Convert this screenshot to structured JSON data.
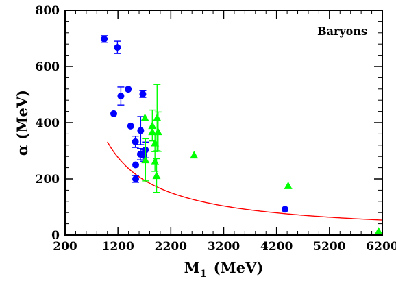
{
  "chart_data": {
    "type": "scatter",
    "ylabel": "α (MeV)",
    "xlabel": "M",
    "xlabel_sub": "1",
    "xlabel_unit": "(MeV)",
    "annotation": "Baryons",
    "xlim": [
      200,
      6200
    ],
    "ylim": [
      0,
      800
    ],
    "x_ticks": [
      200,
      1200,
      2200,
      3200,
      4200,
      5200,
      6200
    ],
    "y_ticks": [
      0,
      200,
      400,
      600,
      800
    ],
    "grid": false,
    "series": [
      {
        "marker": "circle",
        "color": "#0000ff",
        "points": [
          {
            "x": 940,
            "y": 698,
            "err": 12
          },
          {
            "x": 1190,
            "y": 668,
            "err": 22
          },
          {
            "x": 1255,
            "y": 495,
            "err": 32
          },
          {
            "x": 1395,
            "y": 519,
            "err": 0
          },
          {
            "x": 1440,
            "y": 388,
            "err": 0
          },
          {
            "x": 1120,
            "y": 432,
            "err": 0
          },
          {
            "x": 1530,
            "y": 332,
            "err": 20
          },
          {
            "x": 1535,
            "y": 250,
            "err": 0
          },
          {
            "x": 1535,
            "y": 200,
            "err": 12
          },
          {
            "x": 1630,
            "y": 372,
            "err": 50
          },
          {
            "x": 1625,
            "y": 288,
            "err": 20
          },
          {
            "x": 1690,
            "y": 283,
            "err": 20
          },
          {
            "x": 1720,
            "y": 303,
            "err": 28
          },
          {
            "x": 1670,
            "y": 502,
            "err": 12
          },
          {
            "x": 4360,
            "y": 92,
            "err": 0
          }
        ]
      },
      {
        "marker": "triangle",
        "color": "#00ff00",
        "points": [
          {
            "x": 1710,
            "y": 418,
            "err": 0
          },
          {
            "x": 1720,
            "y": 268,
            "err": 75
          },
          {
            "x": 1850,
            "y": 390,
            "err": 55
          },
          {
            "x": 1850,
            "y": 368,
            "err": 0
          },
          {
            "x": 1900,
            "y": 262,
            "err": 35
          },
          {
            "x": 1900,
            "y": 328,
            "err": 30
          },
          {
            "x": 1930,
            "y": 212,
            "err": 60
          },
          {
            "x": 1940,
            "y": 418,
            "err": 118
          },
          {
            "x": 1960,
            "y": 368,
            "err": 70
          },
          {
            "x": 2640,
            "y": 285,
            "err": 0
          },
          {
            "x": 4420,
            "y": 176,
            "err": 0
          },
          {
            "x": 6130,
            "y": 14,
            "err": 0
          }
        ]
      }
    ],
    "fit_curve": {
      "color": "#ff0000",
      "form": "y = A / x",
      "A": 332000,
      "x_range": [
        1000,
        6200
      ]
    }
  }
}
